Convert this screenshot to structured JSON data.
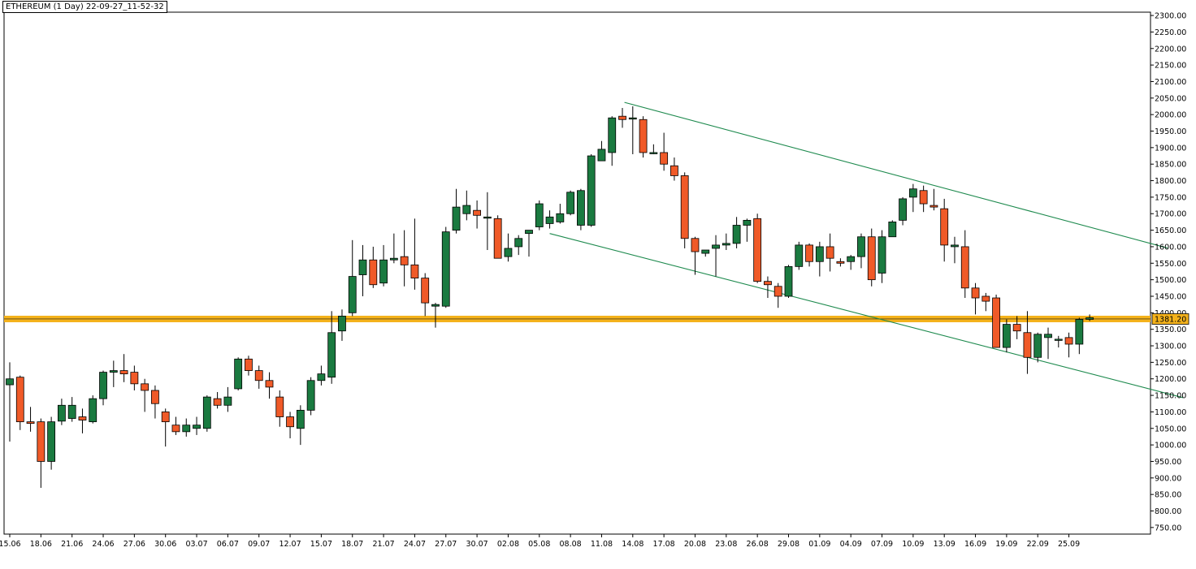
{
  "chart_data": {
    "type": "candlestick",
    "title": "ETHEREUM (1 Day) 22-09-27_11-52-32",
    "ylim": [
      730,
      2310
    ],
    "y_ticks": [
      "750.00",
      "800.00",
      "850.00",
      "900.00",
      "950.00",
      "1000.00",
      "1050.00",
      "1100.00",
      "1150.00",
      "1200.00",
      "1250.00",
      "1300.00",
      "1350.00",
      "1400.00",
      "1450.00",
      "1500.00",
      "1550.00",
      "1600.00",
      "1650.00",
      "1700.00",
      "1750.00",
      "1800.00",
      "1850.00",
      "1900.00",
      "1950.00",
      "2000.00",
      "2050.00",
      "2100.00",
      "2150.00",
      "2200.00",
      "2250.00",
      "2300.00"
    ],
    "x_ticks": [
      {
        "label": "15.06",
        "index": 0
      },
      {
        "label": "18.06",
        "index": 3
      },
      {
        "label": "21.06",
        "index": 6
      },
      {
        "label": "24.06",
        "index": 9
      },
      {
        "label": "27.06",
        "index": 12
      },
      {
        "label": "30.06",
        "index": 15
      },
      {
        "label": "03.07",
        "index": 18
      },
      {
        "label": "06.07",
        "index": 21
      },
      {
        "label": "09.07",
        "index": 24
      },
      {
        "label": "12.07",
        "index": 27
      },
      {
        "label": "15.07",
        "index": 30
      },
      {
        "label": "18.07",
        "index": 33
      },
      {
        "label": "21.07",
        "index": 36
      },
      {
        "label": "24.07",
        "index": 39
      },
      {
        "label": "27.07",
        "index": 42
      },
      {
        "label": "30.07",
        "index": 45
      },
      {
        "label": "02.08",
        "index": 48
      },
      {
        "label": "05.08",
        "index": 51
      },
      {
        "label": "08.08",
        "index": 54
      },
      {
        "label": "11.08",
        "index": 57
      },
      {
        "label": "14.08",
        "index": 60
      },
      {
        "label": "17.08",
        "index": 63
      },
      {
        "label": "20.08",
        "index": 66
      },
      {
        "label": "23.08",
        "index": 69
      },
      {
        "label": "26.08",
        "index": 72
      },
      {
        "label": "29.08",
        "index": 75
      },
      {
        "label": "01.09",
        "index": 78
      },
      {
        "label": "04.09",
        "index": 81
      },
      {
        "label": "07.09",
        "index": 84
      },
      {
        "label": "10.09",
        "index": 87
      },
      {
        "label": "13.09",
        "index": 90
      },
      {
        "label": "16.09",
        "index": 93
      },
      {
        "label": "19.09",
        "index": 96
      },
      {
        "label": "22.09",
        "index": 99
      },
      {
        "label": "25.09",
        "index": 102
      }
    ],
    "ohlc": [
      [
        1182,
        1250,
        1010,
        1200
      ],
      [
        1205,
        1210,
        1045,
        1070
      ],
      [
        1070,
        1115,
        1040,
        1065
      ],
      [
        1070,
        1080,
        870,
        950
      ],
      [
        950,
        1085,
        925,
        1070
      ],
      [
        1072,
        1140,
        1060,
        1120
      ],
      [
        1080,
        1145,
        1070,
        1120
      ],
      [
        1085,
        1110,
        1035,
        1075
      ],
      [
        1070,
        1150,
        1065,
        1140
      ],
      [
        1140,
        1225,
        1120,
        1220
      ],
      [
        1220,
        1255,
        1175,
        1225
      ],
      [
        1225,
        1275,
        1190,
        1215
      ],
      [
        1220,
        1240,
        1165,
        1185
      ],
      [
        1185,
        1200,
        1100,
        1165
      ],
      [
        1165,
        1180,
        1080,
        1125
      ],
      [
        1100,
        1110,
        995,
        1070
      ],
      [
        1060,
        1085,
        1030,
        1040
      ],
      [
        1040,
        1080,
        1025,
        1060
      ],
      [
        1050,
        1085,
        1030,
        1060
      ],
      [
        1050,
        1150,
        1040,
        1145
      ],
      [
        1140,
        1160,
        1110,
        1120
      ],
      [
        1120,
        1175,
        1100,
        1145
      ],
      [
        1170,
        1265,
        1165,
        1260
      ],
      [
        1260,
        1270,
        1210,
        1225
      ],
      [
        1225,
        1240,
        1170,
        1195
      ],
      [
        1195,
        1220,
        1140,
        1175
      ],
      [
        1145,
        1165,
        1055,
        1085
      ],
      [
        1085,
        1100,
        1020,
        1055
      ],
      [
        1050,
        1120,
        1000,
        1105
      ],
      [
        1105,
        1205,
        1090,
        1195
      ],
      [
        1195,
        1240,
        1180,
        1215
      ],
      [
        1205,
        1405,
        1185,
        1340
      ],
      [
        1345,
        1410,
        1315,
        1390
      ],
      [
        1400,
        1620,
        1390,
        1510
      ],
      [
        1515,
        1605,
        1450,
        1560
      ],
      [
        1560,
        1600,
        1475,
        1485
      ],
      [
        1490,
        1605,
        1480,
        1560
      ],
      [
        1560,
        1640,
        1550,
        1565
      ],
      [
        1570,
        1650,
        1480,
        1545
      ],
      [
        1545,
        1685,
        1470,
        1505
      ],
      [
        1505,
        1520,
        1390,
        1430
      ],
      [
        1420,
        1430,
        1355,
        1425
      ],
      [
        1420,
        1660,
        1415,
        1645
      ],
      [
        1650,
        1775,
        1640,
        1720
      ],
      [
        1700,
        1770,
        1680,
        1725
      ],
      [
        1710,
        1740,
        1655,
        1695
      ],
      [
        1690,
        1765,
        1590,
        1690
      ],
      [
        1685,
        1695,
        1565,
        1565
      ],
      [
        1570,
        1640,
        1555,
        1595
      ],
      [
        1600,
        1635,
        1575,
        1625
      ],
      [
        1640,
        1650,
        1570,
        1650
      ],
      [
        1660,
        1740,
        1650,
        1730
      ],
      [
        1670,
        1710,
        1655,
        1690
      ],
      [
        1675,
        1730,
        1670,
        1700
      ],
      [
        1700,
        1770,
        1695,
        1765
      ],
      [
        1665,
        1775,
        1650,
        1770
      ],
      [
        1665,
        1880,
        1660,
        1875
      ],
      [
        1860,
        1920,
        1860,
        1895
      ],
      [
        1885,
        1995,
        1845,
        1990
      ],
      [
        1995,
        2020,
        1960,
        1985
      ],
      [
        1990,
        2025,
        1880,
        1990
      ],
      [
        1985,
        1995,
        1870,
        1885
      ],
      [
        1885,
        1910,
        1880,
        1885
      ],
      [
        1885,
        1945,
        1830,
        1850
      ],
      [
        1845,
        1870,
        1800,
        1815
      ],
      [
        1815,
        1825,
        1595,
        1625
      ],
      [
        1625,
        1630,
        1515,
        1585
      ],
      [
        1580,
        1590,
        1570,
        1590
      ],
      [
        1595,
        1635,
        1510,
        1605
      ],
      [
        1605,
        1640,
        1590,
        1610
      ],
      [
        1610,
        1690,
        1595,
        1665
      ],
      [
        1665,
        1685,
        1615,
        1680
      ],
      [
        1685,
        1700,
        1490,
        1495
      ],
      [
        1495,
        1510,
        1445,
        1485
      ],
      [
        1480,
        1490,
        1415,
        1450
      ],
      [
        1450,
        1545,
        1445,
        1540
      ],
      [
        1540,
        1615,
        1530,
        1605
      ],
      [
        1605,
        1610,
        1540,
        1555
      ],
      [
        1555,
        1615,
        1510,
        1600
      ],
      [
        1600,
        1640,
        1525,
        1565
      ],
      [
        1555,
        1565,
        1540,
        1550
      ],
      [
        1555,
        1575,
        1530,
        1570
      ],
      [
        1570,
        1640,
        1535,
        1630
      ],
      [
        1630,
        1655,
        1480,
        1500
      ],
      [
        1520,
        1650,
        1490,
        1630
      ],
      [
        1630,
        1680,
        1630,
        1675
      ],
      [
        1680,
        1750,
        1665,
        1745
      ],
      [
        1750,
        1790,
        1705,
        1775
      ],
      [
        1770,
        1785,
        1705,
        1730
      ],
      [
        1725,
        1775,
        1710,
        1720
      ],
      [
        1715,
        1745,
        1555,
        1605
      ],
      [
        1600,
        1630,
        1550,
        1605
      ],
      [
        1600,
        1650,
        1445,
        1475
      ],
      [
        1475,
        1490,
        1395,
        1445
      ],
      [
        1450,
        1460,
        1405,
        1435
      ],
      [
        1445,
        1455,
        1295,
        1295
      ],
      [
        1295,
        1380,
        1280,
        1365
      ],
      [
        1365,
        1390,
        1320,
        1345
      ],
      [
        1340,
        1405,
        1215,
        1265
      ],
      [
        1265,
        1340,
        1250,
        1335
      ],
      [
        1325,
        1355,
        1260,
        1335
      ],
      [
        1320,
        1330,
        1295,
        1320
      ],
      [
        1325,
        1340,
        1265,
        1305
      ],
      [
        1305,
        1385,
        1275,
        1380
      ],
      [
        1380,
        1395,
        1375,
        1385
      ]
    ],
    "trendlines": [
      {
        "from": {
          "index": 59.2,
          "value": 2037
        },
        "to": {
          "index": 111.5,
          "value": 1596
        }
      },
      {
        "from": {
          "index": 52,
          "value": 1640
        },
        "to": {
          "index": 113,
          "value": 1143
        }
      }
    ],
    "current_price": {
      "value": 1381.2,
      "label": "1381.20"
    },
    "colors": {
      "up": "#1a7a40",
      "down": "#f05a28",
      "wick": "#000000",
      "trendline": "#1e8a4e",
      "price_line": "#f4b21b",
      "price_box": "#f4b21b"
    }
  }
}
